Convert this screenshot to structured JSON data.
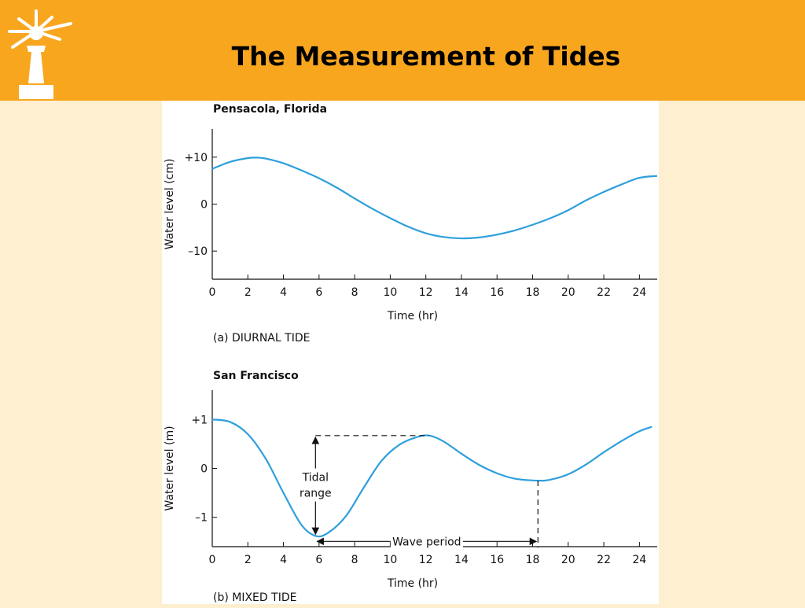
{
  "slide": {
    "title": "The Measurement of Tides",
    "background": "#fdefcf",
    "header_color": "#f9a61f"
  },
  "chart_data": [
    {
      "type": "line",
      "title": "Pensacola, Florida",
      "caption": "(a) DIURNAL TIDE",
      "xlabel": "Time (hr)",
      "ylabel": "Water level (cm)",
      "xlim": [
        0,
        25
      ],
      "ylim": [
        -16,
        16
      ],
      "x_ticks": [
        0,
        2,
        4,
        6,
        8,
        10,
        12,
        14,
        16,
        18,
        20,
        22,
        24
      ],
      "y_ticks": [
        10,
        0,
        -10
      ],
      "y_tick_labels": [
        "+10",
        "0",
        "–10"
      ],
      "line_color": "#2e9fdc",
      "series": [
        {
          "x": [
            0,
            1,
            2,
            2.5,
            3,
            4,
            5,
            6,
            7,
            8,
            9,
            10,
            11,
            12,
            13,
            14,
            15,
            16,
            17,
            18,
            19,
            20,
            21,
            22,
            23,
            24,
            25
          ],
          "values": [
            7.5,
            9.0,
            9.8,
            9.9,
            9.7,
            8.7,
            7.2,
            5.5,
            3.5,
            1.2,
            -1.0,
            -3.0,
            -4.8,
            -6.2,
            -7.0,
            -7.3,
            -7.1,
            -6.5,
            -5.6,
            -4.4,
            -3.0,
            -1.3,
            0.8,
            2.6,
            4.2,
            5.6,
            6.0
          ]
        }
      ]
    },
    {
      "type": "line",
      "title": "San Francisco",
      "caption": "(b) MIXED TIDE",
      "xlabel": "Time (hr)",
      "ylabel": "Water level (m)",
      "xlim": [
        0,
        25
      ],
      "ylim": [
        -1.6,
        1.6
      ],
      "x_ticks": [
        0,
        2,
        4,
        6,
        8,
        10,
        12,
        14,
        16,
        18,
        20,
        22,
        24
      ],
      "y_ticks": [
        1,
        0,
        -1
      ],
      "y_tick_labels": [
        "+1",
        "0",
        "–1"
      ],
      "line_color": "#2e9fdc",
      "series": [
        {
          "x": [
            0,
            1,
            2,
            3,
            4,
            5,
            5.8,
            6.5,
            7.5,
            8.5,
            9.5,
            10.5,
            11.5,
            12.2,
            13,
            14,
            15,
            16,
            17,
            18.3,
            19,
            20,
            21,
            22,
            23,
            24,
            24.7
          ],
          "values": [
            1.0,
            0.95,
            0.7,
            0.2,
            -0.5,
            -1.15,
            -1.38,
            -1.32,
            -0.98,
            -0.4,
            0.15,
            0.48,
            0.64,
            0.67,
            0.55,
            0.3,
            0.07,
            -0.1,
            -0.21,
            -0.25,
            -0.23,
            -0.12,
            0.08,
            0.33,
            0.56,
            0.76,
            0.85
          ]
        }
      ],
      "annotations": {
        "tidal_range": "Tidal\nrange",
        "wave_period": "Wave period",
        "low_time": 5.8,
        "high_time": 12.2,
        "second_low_time": 18.3,
        "high_level": 0.67,
        "low_level": -1.38,
        "second_low_level": -0.25
      }
    }
  ]
}
